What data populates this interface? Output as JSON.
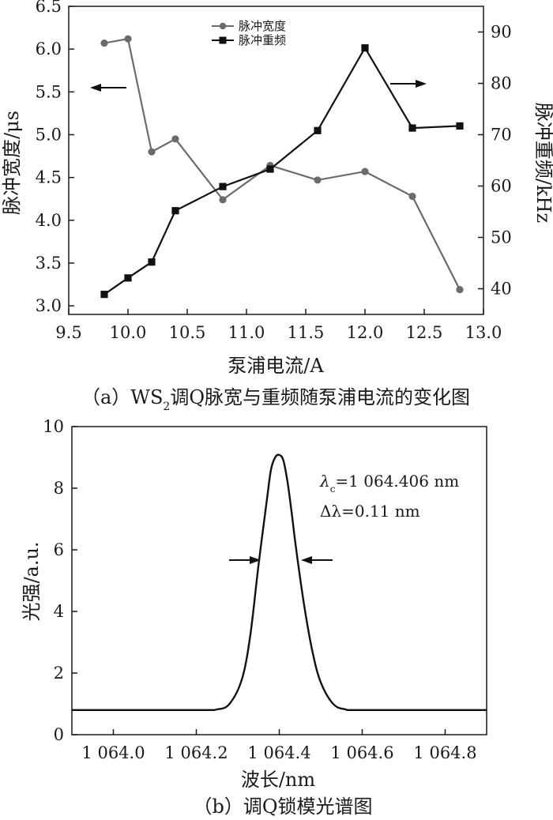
{
  "chart_data": [
    {
      "type": "line",
      "caption_prefix": "（a）WS",
      "caption_sub": "2",
      "caption_suffix": "调Q脉宽与重频随泵浦电流的变化图",
      "xlabel": "泵浦电流/A",
      "ylabel_left": "脉冲宽度/μs",
      "ylabel_right": "脉冲重频/kHz",
      "xlim": [
        9.5,
        13.0
      ],
      "ylim_left": [
        2.9,
        6.5
      ],
      "ylim_right": [
        35,
        95
      ],
      "x_ticks": [
        "9.5",
        "10.0",
        "10.5",
        "11.0",
        "11.5",
        "12.0",
        "12.5",
        "13.0"
      ],
      "y_left_ticks": [
        "3.0",
        "3.5",
        "4.0",
        "4.5",
        "5.0",
        "5.5",
        "6.0",
        "6.5"
      ],
      "y_right_ticks": [
        "40",
        "50",
        "60",
        "70",
        "80",
        "90"
      ],
      "legend_position": "top-center",
      "series": [
        {
          "name": "脉冲宽度",
          "axis": "left",
          "marker": "circle",
          "color": "#6b6b6b",
          "x": [
            9.8,
            10.0,
            10.2,
            10.4,
            10.8,
            11.2,
            11.6,
            12.0,
            12.4,
            12.8
          ],
          "y": [
            6.07,
            6.12,
            4.8,
            4.95,
            4.24,
            4.64,
            4.47,
            4.57,
            4.28,
            3.19
          ]
        },
        {
          "name": "脉冲重频",
          "axis": "right",
          "marker": "square",
          "color": "#111111",
          "x": [
            9.8,
            10.0,
            10.2,
            10.4,
            10.8,
            11.2,
            11.6,
            12.0,
            12.4,
            12.8
          ],
          "y": [
            38.9,
            42.1,
            45.2,
            55.2,
            59.9,
            63.3,
            70.8,
            86.9,
            71.3,
            71.7
          ]
        }
      ]
    },
    {
      "type": "line",
      "caption": "（b）调Q锁模光谱图",
      "xlabel": "波长/nm",
      "ylabel": "光强/a.u.",
      "xlim": [
        1063.9,
        1064.9
      ],
      "ylim": [
        0,
        10
      ],
      "x_ticks": [
        "1 064.0",
        "1 064.2",
        "1 064.4",
        "1 064.6",
        "1 064.8"
      ],
      "y_ticks": [
        "0",
        "2",
        "4",
        "6",
        "8",
        "10"
      ],
      "annotation_center_prefix": "λ",
      "annotation_center_sub": "c",
      "annotation_center_value": "=1 064.406 nm",
      "annotation_width": "Δλ=0.11 nm",
      "series": [
        {
          "color": "#111111",
          "x": [
            1063.9,
            1064.2,
            1064.25,
            1064.28,
            1064.31,
            1064.33,
            1064.35,
            1064.37,
            1064.38,
            1064.39,
            1064.4,
            1064.41,
            1064.42,
            1064.43,
            1064.44,
            1064.46,
            1064.48,
            1064.5,
            1064.53,
            1064.56,
            1064.6,
            1064.9
          ],
          "y": [
            0.8,
            0.8,
            0.82,
            1.0,
            1.8,
            3.2,
            5.5,
            7.6,
            8.6,
            9.0,
            9.08,
            8.9,
            8.2,
            7.2,
            6.1,
            4.2,
            2.7,
            1.7,
            1.0,
            0.82,
            0.8,
            0.8
          ]
        }
      ]
    }
  ]
}
